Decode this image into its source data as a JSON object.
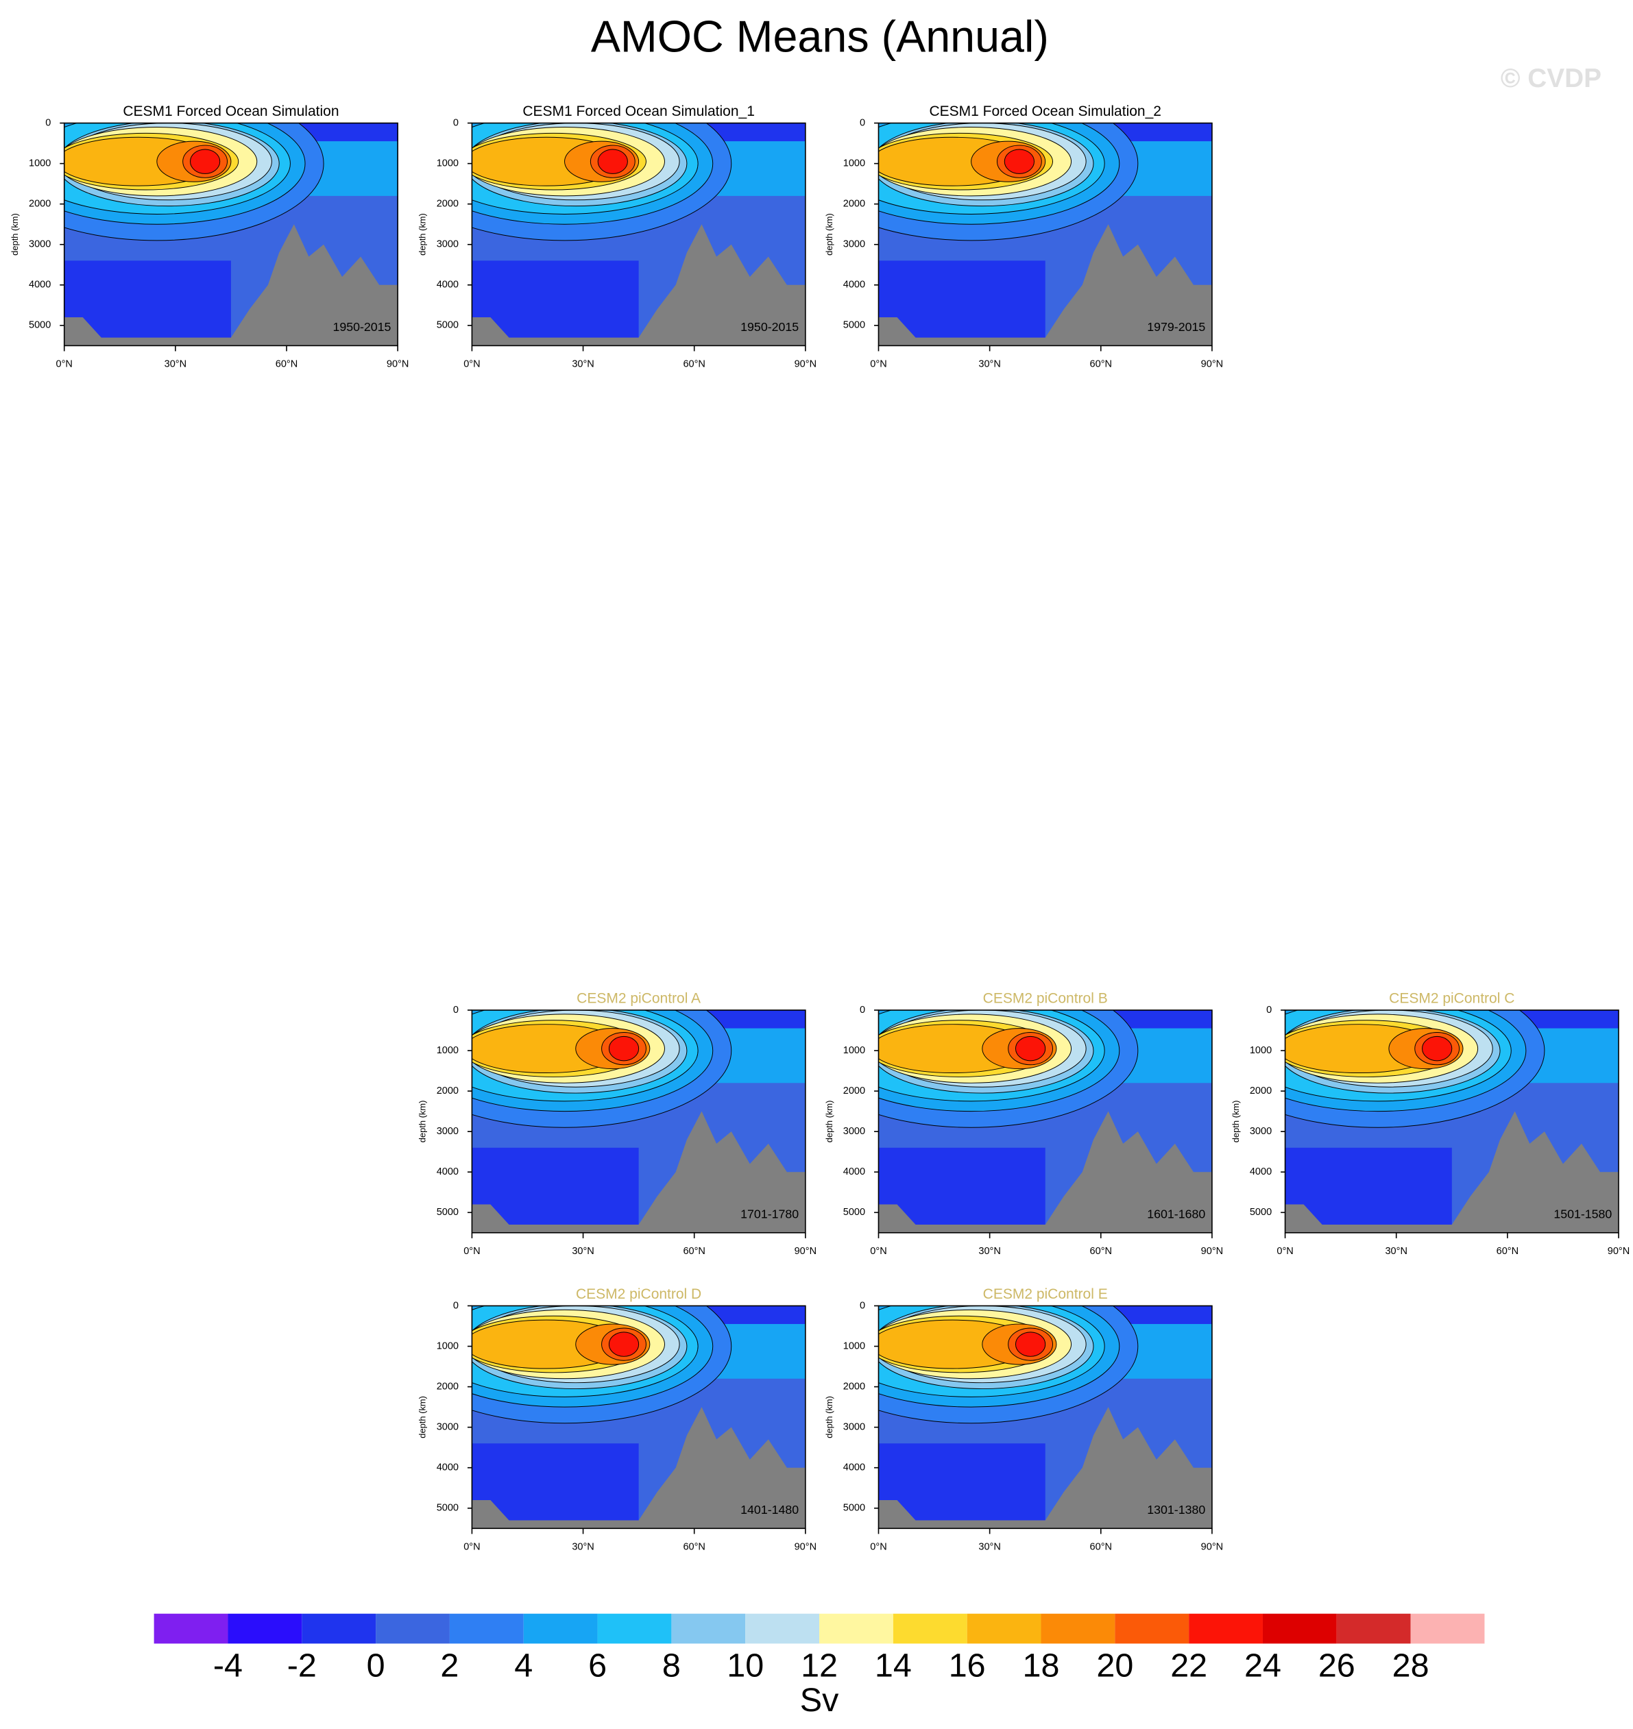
{
  "title": "AMOC Means (Annual)",
  "watermark": "© CVDP",
  "panels": [
    {
      "title": "CESM1 Forced Ocean Simulation",
      "period": "1950-2015",
      "title_color": "#000000"
    },
    {
      "title": "CESM1 Forced Ocean Simulation_1",
      "period": "1950-2015",
      "title_color": "#000000"
    },
    {
      "title": "CESM1 Forced Ocean Simulation_2",
      "period": "1979-2015",
      "title_color": "#000000"
    },
    {
      "title": "CESM2 piControl A",
      "period": "1701-1780",
      "title_color": "#cdb866"
    },
    {
      "title": "CESM2 piControl B",
      "period": "1601-1680",
      "title_color": "#cdb866"
    },
    {
      "title": "CESM2 piControl C",
      "period": "1501-1580",
      "title_color": "#cdb866"
    },
    {
      "title": "CESM2 piControl D",
      "period": "1401-1480",
      "title_color": "#cdb866"
    },
    {
      "title": "CESM2 piControl E",
      "period": "1301-1380",
      "title_color": "#cdb866"
    }
  ],
  "axes": {
    "ylabel": "depth (km)",
    "ylim": [
      0,
      5500
    ],
    "yticks": [
      0,
      1000,
      2000,
      3000,
      4000,
      5000
    ],
    "xlim": [
      0,
      90
    ],
    "xticks": [
      {
        "value": 0,
        "label": "0°N"
      },
      {
        "value": 30,
        "label": "30°N"
      },
      {
        "value": 60,
        "label": "60°N"
      },
      {
        "value": 90,
        "label": "90°N"
      }
    ]
  },
  "colorbar": {
    "label": "Sv",
    "levels": [
      -4,
      -2,
      0,
      2,
      4,
      6,
      8,
      10,
      12,
      14,
      16,
      18,
      20,
      22,
      24,
      26,
      28
    ],
    "colors": [
      "#7f1ff0",
      "#2a0dfc",
      "#1f34ee",
      "#3b66e0",
      "#2f7ff3",
      "#17a5f4",
      "#1fc1f8",
      "#85c8f0",
      "#bde0f1",
      "#fff7a0",
      "#fddb2f",
      "#fbb410",
      "#fb8a07",
      "#fb5a08",
      "#fc1407",
      "#dd0000",
      "#d42a2a",
      "#fcb2b2"
    ]
  }
}
